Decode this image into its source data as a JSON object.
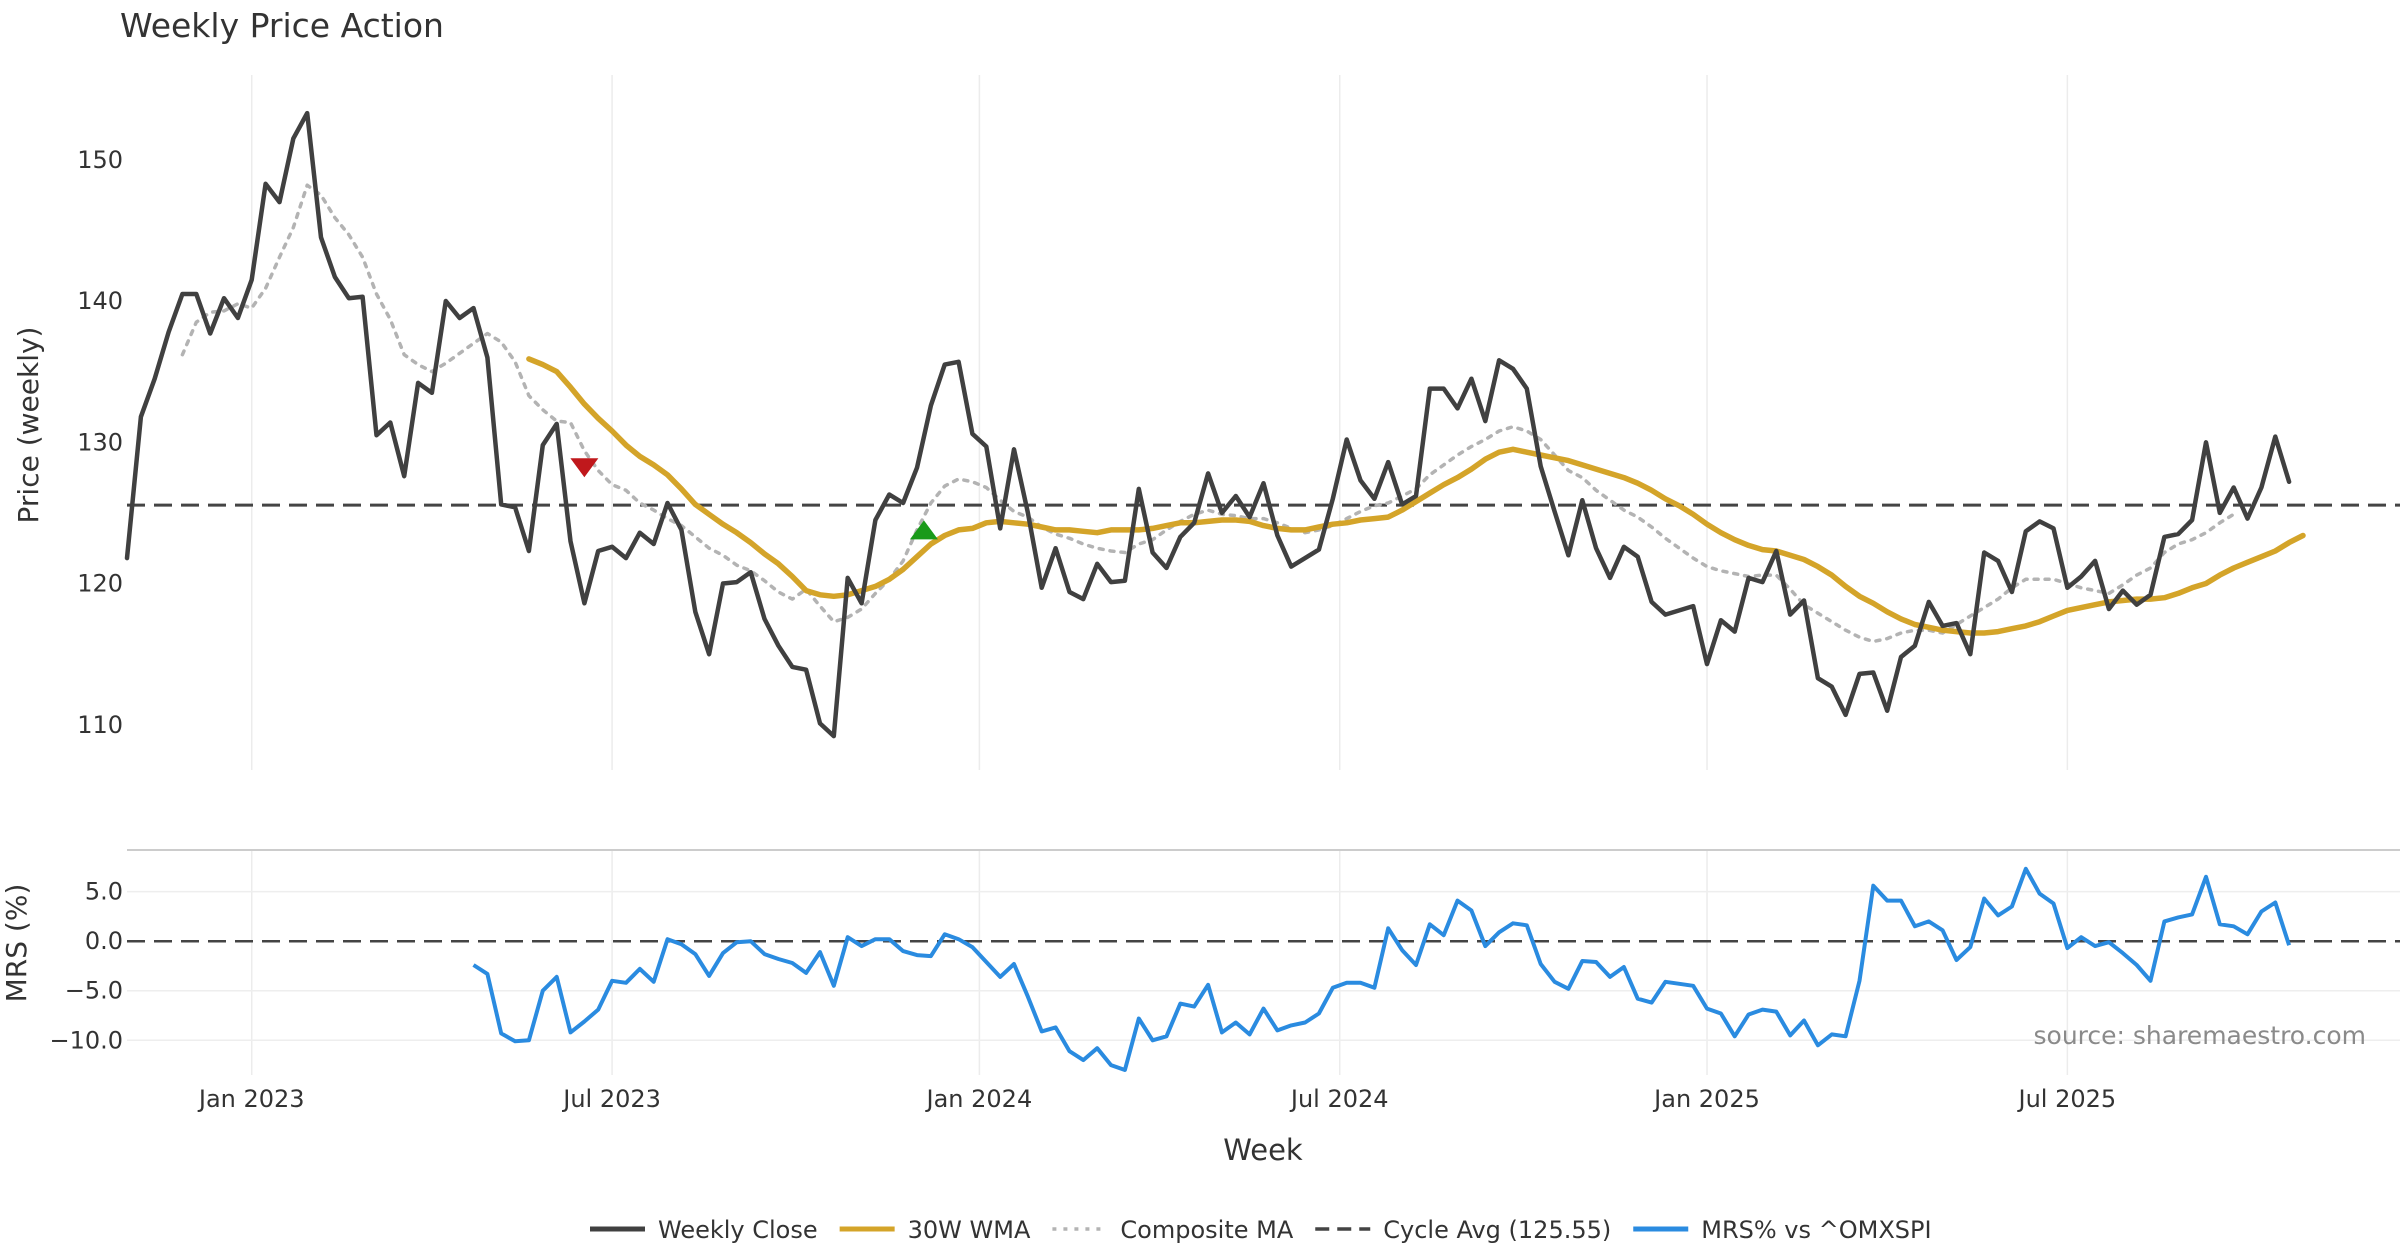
{
  "chart_data": [
    {
      "panel": "price",
      "type": "line",
      "title": "Weekly Price Action",
      "ylabel": "Price (weekly)",
      "ylim": [
        106.8,
        156
      ],
      "yticks": [
        110,
        120,
        130,
        140,
        150
      ],
      "xlim": [
        0,
        164
      ],
      "xticks": [
        {
          "week": 9,
          "label": "Jan 2023"
        },
        {
          "week": 35,
          "label": "Jul 2023"
        },
        {
          "week": 61.5,
          "label": "Jan 2024"
        },
        {
          "week": 87.5,
          "label": "Jul 2024"
        },
        {
          "week": 114,
          "label": "Jan 2025"
        },
        {
          "week": 140,
          "label": "Jul 2025"
        }
      ],
      "grid": "vertical",
      "series": [
        {
          "name": "Weekly Close",
          "color": "#404040",
          "style": "solid",
          "start_week": 0,
          "values": [
            121.8,
            131.8,
            134.5,
            137.8,
            140.5,
            140.5,
            137.7,
            140.2,
            138.8,
            141.5,
            148.3,
            147,
            151.5,
            153.3,
            144.5,
            141.7,
            140.2,
            140.3,
            130.5,
            131.4,
            127.6,
            134.2,
            133.5,
            140,
            138.8,
            139.5,
            136,
            125.6,
            125.4,
            122.3,
            129.8,
            131.3,
            123,
            118.6,
            122.3,
            122.6,
            121.8,
            123.6,
            122.8,
            125.7,
            123.8,
            118,
            115,
            120,
            120.1,
            120.8,
            117.5,
            115.6,
            114.1,
            113.9,
            110.1,
            109.2,
            120.4,
            118.6,
            124.5,
            126.3,
            125.7,
            128.2,
            132.6,
            135.5,
            135.7,
            130.6,
            129.7,
            123.9,
            129.5,
            125,
            119.7,
            122.5,
            119.4,
            118.9,
            121.4,
            120.1,
            120.2,
            126.7,
            122.2,
            121.1,
            123.3,
            124.3,
            127.8,
            125,
            126.2,
            124.7,
            127.1,
            123.4,
            121.2,
            121.8,
            122.4,
            126,
            130.2,
            127.3,
            126,
            128.6,
            125.6,
            126.2,
            133.8,
            133.8,
            132.4,
            134.5,
            131.5,
            135.8,
            135.2,
            133.8,
            128.3,
            125.1,
            122,
            125.9,
            122.5,
            120.4,
            122.6,
            121.9,
            118.7,
            117.8,
            118.1,
            118.4,
            114.3,
            117.4,
            116.6,
            120.4,
            120.1,
            122.3,
            117.8,
            118.8,
            113.3,
            112.7,
            110.7,
            113.6,
            113.7,
            111,
            114.8,
            115.6,
            118.7,
            117,
            117.2,
            115,
            122.2,
            121.6,
            119.4,
            123.7,
            124.4,
            123.9,
            119.7,
            120.5,
            121.6,
            118.2,
            119.5,
            118.5,
            119.2,
            123.3,
            123.5,
            124.5,
            130,
            125,
            126.8,
            124.6,
            126.8,
            130.4,
            127.2
          ]
        },
        {
          "name": "30W WMA",
          "color": "#d4a429",
          "style": "solid",
          "start_week": 29,
          "values": [
            135.9,
            135.5,
            135,
            133.9,
            132.7,
            131.7,
            130.8,
            129.8,
            129,
            128.4,
            127.7,
            126.7,
            125.6,
            124.9,
            124.2,
            123.6,
            122.9,
            122.1,
            121.4,
            120.5,
            119.5,
            119.2,
            119.1,
            119.2,
            119.5,
            119.8,
            120.3,
            121,
            121.9,
            122.8,
            123.4,
            123.8,
            123.9,
            124.3,
            124.4,
            124.3,
            124.2,
            124,
            123.8,
            123.8,
            123.7,
            123.6,
            123.8,
            123.8,
            123.8,
            123.9,
            124.1,
            124.3,
            124.3,
            124.4,
            124.5,
            124.5,
            124.4,
            124.1,
            123.9,
            123.8,
            123.8,
            124,
            124.2,
            124.3,
            124.5,
            124.6,
            124.7,
            125.2,
            125.8,
            126.4,
            127,
            127.5,
            128.1,
            128.8,
            129.3,
            129.5,
            129.3,
            129.1,
            128.9,
            128.7,
            128.4,
            128.1,
            127.8,
            127.5,
            127.1,
            126.6,
            126,
            125.5,
            124.9,
            124.2,
            123.6,
            123.1,
            122.7,
            122.4,
            122.3,
            122,
            121.7,
            121.2,
            120.6,
            119.8,
            119.1,
            118.6,
            118,
            117.5,
            117.1,
            116.9,
            116.7,
            116.6,
            116.5,
            116.5,
            116.6,
            116.8,
            117,
            117.3,
            117.7,
            118.1,
            118.3,
            118.5,
            118.7,
            118.8,
            118.9,
            118.9,
            119,
            119.3,
            119.7,
            120,
            120.6,
            121.1,
            121.5,
            121.9,
            122.3,
            122.9,
            123.4
          ]
        },
        {
          "name": "Composite MA",
          "color": "#b3b3b3",
          "style": "dotted",
          "start_week": 4,
          "values": [
            136.2,
            138.5,
            139.2,
            139.3,
            139.8,
            139.5,
            140.9,
            143.1,
            145.2,
            148.2,
            147.5,
            145.9,
            144.7,
            143.1,
            140.5,
            138.7,
            136.2,
            135.5,
            135,
            135.6,
            136.3,
            137,
            137.7,
            137.1,
            135.7,
            133.3,
            132.3,
            131.5,
            131.4,
            129.4,
            128,
            127,
            126.6,
            125.7,
            125.2,
            124.6,
            124.1,
            123.3,
            122.5,
            122,
            121.3,
            120.9,
            120.2,
            119.4,
            118.9,
            119.6,
            118.4,
            117.3,
            117.6,
            118.2,
            119.3,
            120.3,
            121.6,
            123.8,
            125.7,
            126.9,
            127.4,
            127.2,
            126.8,
            125.9,
            125.1,
            124.7,
            124,
            123.5,
            123.2,
            122.8,
            122.5,
            122.3,
            122.2,
            122.8,
            123.1,
            123.8,
            124.4,
            124.9,
            125.2,
            124.9,
            124.8,
            124.6,
            124.6,
            124.3,
            123.9,
            123.6,
            123.8,
            124.1,
            124.6,
            125.1,
            125.5,
            125.7,
            126.2,
            126.7,
            127.7,
            128.4,
            129.1,
            129.7,
            130.2,
            130.8,
            131.1,
            130.8,
            130.2,
            129.1,
            128,
            127.5,
            126.6,
            125.9,
            125.2,
            124.7,
            124,
            123.2,
            122.5,
            121.8,
            121.2,
            120.9,
            120.7,
            120.5,
            120.6,
            120.6,
            119.6,
            118.5,
            117.9,
            117.3,
            116.7,
            116.2,
            115.9,
            116.1,
            116.5,
            116.7,
            116.7,
            116.5,
            117.1,
            117.7,
            118.3,
            118.9,
            119.7,
            120.3,
            120.3,
            120.3,
            120,
            119.7,
            119.5,
            119.3,
            119.9,
            120.6,
            121.1,
            122.2,
            122.8,
            123.1,
            123.6,
            124.3,
            124.9
          ]
        },
        {
          "name": "Cycle Avg (125.55)",
          "color": "#444444",
          "style": "dashed",
          "constant": 125.55
        }
      ],
      "markers": [
        {
          "type": "sell",
          "shape": "down-triangle",
          "color": "#c0181c",
          "week": 33,
          "value": 128.2
        },
        {
          "type": "buy",
          "shape": "up-triangle",
          "color": "#1a9a1a",
          "week": 57.5,
          "value": 123.8
        }
      ]
    },
    {
      "panel": "mrs",
      "type": "line",
      "ylabel": "MRS (%)",
      "xlabel": "Week",
      "ylim": [
        -13.5,
        9.2
      ],
      "yticks": [
        {
          "value": 5,
          "label": "5.0"
        },
        {
          "value": 0,
          "label": "0.0"
        },
        {
          "value": -5,
          "label": "−5.0"
        },
        {
          "value": -10,
          "label": "−10.0"
        }
      ],
      "reference_line": 0,
      "series": [
        {
          "name": "MRS% vs ^OMXSPI",
          "color": "#2a8be0",
          "style": "solid",
          "start_week": 25,
          "values": [
            -2.4,
            -3.3,
            -9.3,
            -10.1,
            -10,
            -5,
            -3.6,
            -9.2,
            -8.1,
            -6.9,
            -4,
            -4.2,
            -2.8,
            -4.1,
            0.2,
            -0.3,
            -1.3,
            -3.5,
            -1.2,
            -0.1,
            0,
            -1.3,
            -1.8,
            -2.2,
            -3.2,
            -1.1,
            -4.5,
            0.4,
            -0.5,
            0.2,
            0.2,
            -1,
            -1.4,
            -1.5,
            0.7,
            0.2,
            -0.6,
            -2.1,
            -3.6,
            -2.3,
            -5.6,
            -9.1,
            -8.7,
            -11.1,
            -12,
            -10.8,
            -12.5,
            -13,
            -7.8,
            -10,
            -9.6,
            -6.3,
            -6.6,
            -4.4,
            -9.2,
            -8.2,
            -9.4,
            -6.8,
            -9,
            -8.5,
            -8.2,
            -7.3,
            -4.7,
            -4.2,
            -4.2,
            -4.7,
            1.3,
            -0.9,
            -2.4,
            1.7,
            0.6,
            4.1,
            3.1,
            -0.5,
            0.9,
            1.8,
            1.6,
            -2.3,
            -4.1,
            -4.8,
            -2,
            -2.1,
            -3.6,
            -2.6,
            -5.8,
            -6.2,
            -4.1,
            -4.3,
            -4.5,
            -6.8,
            -7.3,
            -9.6,
            -7.4,
            -6.9,
            -7.1,
            -9.5,
            -8,
            -10.5,
            -9.4,
            -9.6,
            -4,
            5.6,
            4.1,
            4.1,
            1.5,
            2,
            1.1,
            -1.9,
            -0.6,
            4.3,
            2.6,
            3.5,
            7.3,
            4.8,
            3.8,
            -0.7,
            0.4,
            -0.5,
            -0.1,
            -1.2,
            -2.4,
            -4,
            2,
            2.4,
            2.7,
            6.5,
            1.7,
            1.5,
            0.7,
            3,
            3.9,
            -0.4
          ]
        }
      ]
    }
  ],
  "legend": {
    "placement": "bottom-center",
    "entries": [
      {
        "label": "Weekly Close",
        "color": "#404040",
        "style": "solid"
      },
      {
        "label": "30W WMA",
        "color": "#d4a429",
        "style": "solid"
      },
      {
        "label": "Composite MA",
        "color": "#b3b3b3",
        "style": "dotted"
      },
      {
        "label": "Cycle Avg (125.55)",
        "color": "#444444",
        "style": "dashed"
      },
      {
        "label": "MRS% vs ^OMXSPI",
        "color": "#2a8be0",
        "style": "solid"
      }
    ]
  },
  "source_note": "source: sharemaestro.com"
}
